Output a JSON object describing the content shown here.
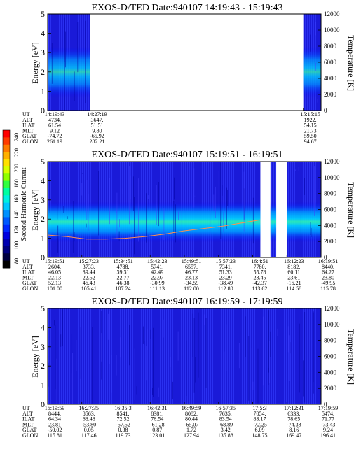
{
  "figure": {
    "colorbar": {
      "label": "Second Harmonic Current",
      "ticks": [
        "240",
        "220",
        "200",
        "180",
        "160",
        "140",
        "120",
        "100",
        "80"
      ],
      "colors": [
        "#ff0000",
        "#ff3a00",
        "#ff7a00",
        "#ffb000",
        "#ffe000",
        "#d8ff00",
        "#90ff00",
        "#30ff40",
        "#00ffa0",
        "#00f0e0",
        "#00c8ff",
        "#0090ff",
        "#0058ff",
        "#0028ff",
        "#0000e0",
        "#0000b0",
        "#000080",
        "#000040",
        "#000000"
      ]
    }
  },
  "chart_data": [
    {
      "type": "heatmap",
      "title": "EXOS-D/TED   Date:940107   14:19:43 - 15:19:43",
      "ylabel": "Energy [eV]",
      "ylabel_right": "Temperature [K]",
      "ylim": [
        0,
        5
      ],
      "ylim_right": [
        0,
        12000
      ],
      "yticks": [
        "0",
        "1",
        "2",
        "3",
        "4",
        "5"
      ],
      "yticks_right": [
        "0",
        "2000",
        "4000",
        "6000",
        "8000",
        "10000",
        "12000"
      ],
      "data_segments": [
        [
          0,
          0.155
        ],
        [
          0.935,
          1.0
        ]
      ],
      "band_center_ev": 2.0,
      "row_labels": [
        "UT",
        "ALT",
        "ILAT",
        "MLT",
        "GLAT",
        "GLON"
      ],
      "columns": [
        {
          "frac": 0.0,
          "values": [
            "14:19:43",
            "4734.",
            "61.54",
            "9.12",
            "-74.72",
            "261.19"
          ]
        },
        {
          "frac": 0.155,
          "values": [
            "14:27:19",
            "3647.",
            "51.51",
            "9.80",
            "-65.92",
            "282.21"
          ]
        },
        {
          "frac": 0.935,
          "values": [
            "15:15:15",
            "1922.",
            "54.15",
            "21.73",
            "59.50",
            "94.67"
          ]
        }
      ]
    },
    {
      "type": "heatmap",
      "title": "EXOS-D/TED   Date:940107   15:19:51 - 16:19:51",
      "ylabel": "Energy [eV]",
      "ylabel_right": "Temperature [K]",
      "ylim": [
        0,
        5
      ],
      "ylim_right": [
        0,
        12000
      ],
      "yticks": [
        "0",
        "1",
        "2",
        "3",
        "4",
        "5"
      ],
      "yticks_right": [
        "0",
        "2000",
        "4000",
        "6000",
        "8000",
        "10000",
        "12000"
      ],
      "data_segments": [
        [
          0,
          0.778
        ],
        [
          0.815,
          0.836
        ],
        [
          0.875,
          1.0
        ]
      ],
      "band_center_ev": 1.85,
      "temperature_trace_k": [
        2800,
        2600,
        2300,
        2300,
        2400,
        2600,
        2900,
        3300,
        3600,
        3900,
        4300,
        4700
      ],
      "row_labels": [
        "UT",
        "ALT",
        "ILAT",
        "MLT",
        "GLAT",
        "GLON"
      ],
      "columns": [
        {
          "frac": 0.0,
          "values": [
            "15:19:51",
            "2604.",
            "46.05",
            "22.13",
            "52.13",
            "101.00"
          ]
        },
        {
          "frac": 0.125,
          "values": [
            "15:27:23",
            "3733.",
            "39.44",
            "22.52",
            "46.43",
            "105.41"
          ]
        },
        {
          "frac": 0.25,
          "values": [
            "15:34:51",
            "4788.",
            "39.31",
            "22.77",
            "46.38",
            "107.24"
          ]
        },
        {
          "frac": 0.375,
          "values": [
            "15:42:23",
            "5741.",
            "42.49",
            "22.97",
            "-30.99",
            "111.13"
          ]
        },
        {
          "frac": 0.5,
          "values": [
            "15:49:51",
            "6557.",
            "46.77",
            "23.13",
            "-34.59",
            "112.00"
          ]
        },
        {
          "frac": 0.625,
          "values": [
            "15:57:23",
            "7341.",
            "51.33",
            "23.29",
            "-38.49",
            "112.80"
          ]
        },
        {
          "frac": 0.75,
          "values": [
            "16:4:51",
            "7780.",
            "55.78",
            "23.45",
            "-42.37",
            "113.62"
          ]
        },
        {
          "frac": 0.875,
          "values": [
            "16:12:23",
            "8182.",
            "60.11",
            "23.61",
            "-16.21",
            "114.58"
          ]
        },
        {
          "frac": 1.0,
          "values": [
            "16:19:51",
            "8440.",
            "64.27",
            "23.80",
            "-49.95",
            "115.78"
          ]
        }
      ]
    },
    {
      "type": "heatmap",
      "title": "EXOS-D/TED   Date:940107   16:19:59 - 17:19:59",
      "ylabel": "Energy [eV]",
      "ylabel_right": "Temperature [K]",
      "ylim": [
        0,
        5
      ],
      "ylim_right": [
        0,
        12000
      ],
      "yticks": [
        "0",
        "1",
        "2",
        "3",
        "4",
        "5"
      ],
      "yticks_right": [
        "0",
        "2000",
        "4000",
        "6000",
        "8000",
        "10000",
        "12000"
      ],
      "data_segments": [
        [
          0,
          1.0
        ]
      ],
      "band_center_ev": null,
      "row_labels": [
        "UT",
        "ALT",
        "ILAT",
        "MLT",
        "GLAT",
        "GLON"
      ],
      "columns": [
        {
          "frac": 0.0,
          "values": [
            "16:19:59",
            "8444.",
            "64.34",
            "23.81",
            "-50.02",
            "115.81"
          ]
        },
        {
          "frac": 0.125,
          "values": [
            "16:27:35",
            "8563.",
            "68.48",
            "-53.80",
            "0.05",
            "117.46"
          ]
        },
        {
          "frac": 0.25,
          "values": [
            "16:35:3",
            "8541.",
            "72.52",
            "-57.52",
            "0.38",
            "119.73"
          ]
        },
        {
          "frac": 0.375,
          "values": [
            "16:42:31",
            "8381.",
            "76.54",
            "-61.28",
            "0.87",
            "123.01"
          ]
        },
        {
          "frac": 0.5,
          "values": [
            "16:49:59",
            "8082.",
            "80.44",
            "-65.07",
            "1.72",
            "127.94"
          ]
        },
        {
          "frac": 0.625,
          "values": [
            "16:57:35",
            "7635.",
            "83.54",
            "-68.89",
            "3.42",
            "135.88"
          ]
        },
        {
          "frac": 0.75,
          "values": [
            "17:5:3",
            "7054.",
            "83.17",
            "-72.25",
            "6.09",
            "148.75"
          ]
        },
        {
          "frac": 0.875,
          "values": [
            "17:12:31",
            "6333.",
            "78.65",
            "-74.33",
            "8.16",
            "169.47"
          ]
        },
        {
          "frac": 1.0,
          "values": [
            "17:19:59",
            "5474.",
            "71.77",
            "-73.43",
            "9.24",
            "196.41"
          ]
        }
      ]
    }
  ]
}
